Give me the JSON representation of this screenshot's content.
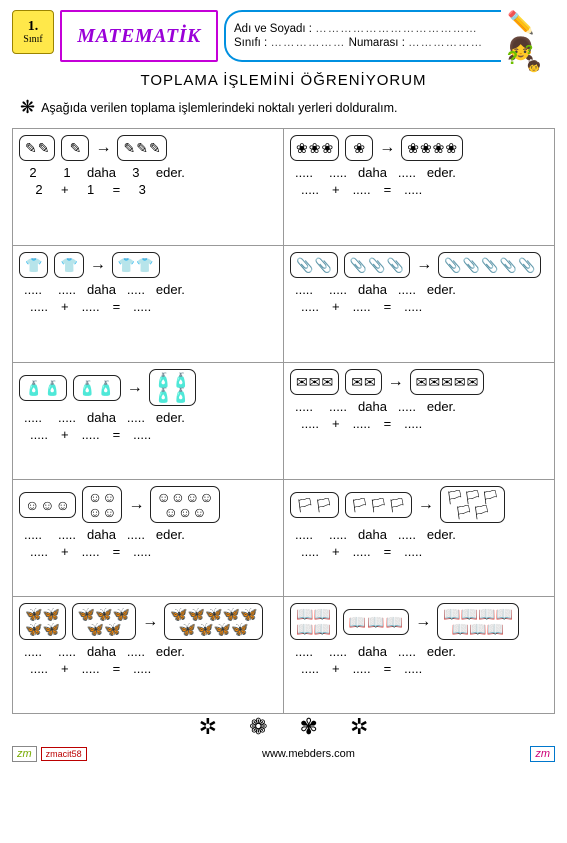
{
  "header": {
    "grade_num": "1.",
    "grade_word": "Sınıf",
    "subject": "MATEMATİK",
    "name_label": "Adı ve Soyadı :",
    "class_label": "Sınıfı :",
    "number_label": "Numarası :",
    "name_dots": "…………………………………",
    "class_dots": "………………",
    "number_dots": "………………"
  },
  "title": "TOPLAMA İŞLEMİNİ ÖĞRENİYORUM",
  "instruction": "Aşağıda verilen toplama işlemlerindeki noktalı yerleri dolduralım.",
  "words": {
    "daha": "daha",
    "eder": "eder.",
    "plus": "+",
    "equals": "="
  },
  "blank": ".....",
  "cells": [
    {
      "glyph": "✎",
      "a": 2,
      "b": 1,
      "filled": true,
      "v1": "2",
      "v2": "1",
      "v3": "3",
      "e1": "2",
      "e2": "1",
      "e3": "3"
    },
    {
      "glyph": "❀",
      "a": 3,
      "b": 1,
      "filled": false
    },
    {
      "glyph": "👕",
      "a": 1,
      "b": 1,
      "filled": false
    },
    {
      "glyph": "📎",
      "a": 2,
      "b": 3,
      "filled": false
    },
    {
      "glyph": "🧴",
      "a": 2,
      "b": 2,
      "stack": true,
      "filled": false
    },
    {
      "glyph": "✉",
      "a": 3,
      "b": 2,
      "filled": false
    },
    {
      "glyph": "☺",
      "a": 3,
      "b": 4,
      "stack": true,
      "filled": false
    },
    {
      "glyph": "🏳",
      "a": 2,
      "b": 3,
      "stack": true,
      "filled": false
    },
    {
      "glyph": "🦋",
      "a": 4,
      "b": 5,
      "stack": true,
      "filled": false
    },
    {
      "glyph": "📖",
      "a": 4,
      "b": 3,
      "stack": true,
      "filled": false
    }
  ],
  "footer": {
    "author": "zmacit58",
    "site": "www.mebders.com",
    "zm": "zm"
  }
}
